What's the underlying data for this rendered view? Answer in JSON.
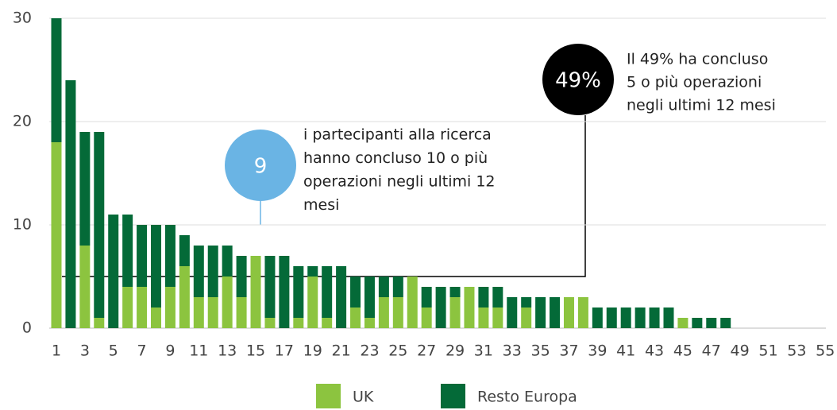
{
  "chart_data": {
    "type": "stacked_bar",
    "categories": [
      1,
      null,
      3,
      null,
      5,
      null,
      7,
      null,
      9,
      null,
      11,
      null,
      13,
      null,
      15,
      null,
      17,
      null,
      19,
      null,
      21,
      null,
      23,
      null,
      25,
      null,
      27,
      null,
      29,
      null,
      31,
      null,
      33,
      null,
      35,
      null,
      37,
      null,
      39,
      null,
      41,
      null,
      43,
      null,
      45,
      null,
      47,
      null,
      49,
      null,
      51,
      null,
      53,
      null,
      55
    ],
    "series": [
      {
        "name": "UK",
        "color": "#8cc43f",
        "values": [
          18,
          0,
          8,
          1,
          0,
          4,
          4,
          2,
          4,
          6,
          3,
          3,
          5,
          3,
          7,
          1,
          0,
          1,
          5,
          1,
          0,
          2,
          1,
          3,
          3,
          5,
          2,
          0,
          3,
          4,
          2,
          2,
          0,
          2,
          0,
          0,
          3,
          3,
          0,
          0,
          0,
          0,
          0,
          0,
          1,
          0,
          0,
          0,
          0,
          0,
          0,
          0,
          0,
          0,
          0
        ]
      },
      {
        "name": "Resto Europa",
        "color": "#046a38",
        "values": [
          12,
          24,
          11,
          18,
          11,
          7,
          6,
          8,
          6,
          3,
          5,
          5,
          3,
          4,
          0,
          6,
          7,
          5,
          1,
          5,
          6,
          3,
          4,
          2,
          2,
          0,
          2,
          4,
          1,
          0,
          2,
          2,
          3,
          1,
          3,
          3,
          0,
          0,
          2,
          2,
          2,
          2,
          2,
          2,
          0,
          1,
          1,
          1,
          0,
          0,
          0,
          0,
          0,
          0,
          0
        ]
      }
    ],
    "ylim": [
      0,
      30
    ],
    "yticks": [
      0,
      10,
      20,
      30
    ],
    "grid": true,
    "annotations": [
      {
        "circle_text": "9",
        "color": "#6ab4e4",
        "lines": [
          "i partecipanti alla ricerca",
          "hanno concluso 10 o più",
          "operazioni negli ultimi 12",
          "mesi"
        ]
      },
      {
        "circle_text": "49%",
        "color": "#000000",
        "lines": [
          "Il 49% ha concluso",
          "5 o più operazioni",
          "negli ultimi 12 mesi"
        ]
      }
    ]
  }
}
